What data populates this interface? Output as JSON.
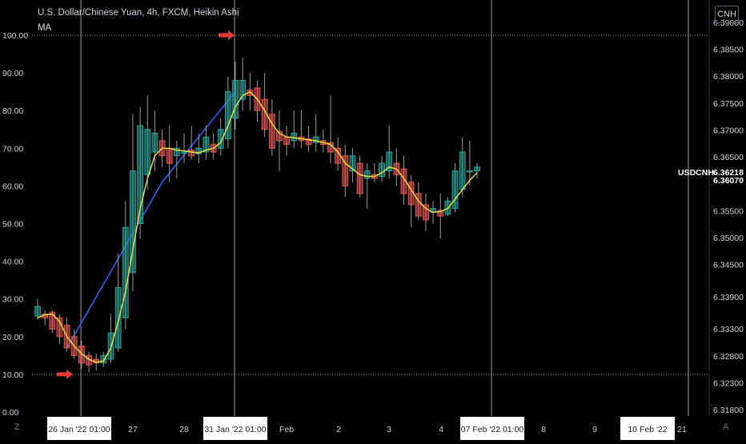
{
  "header": {
    "title": "U.S. Dollar/Chinese Yuan, 4h, FXCM, Heikin Ashi",
    "indicator": "MA",
    "currency_badge": "CNH",
    "bottom_left": "Z",
    "bottom_right": "A"
  },
  "colors": {
    "background": "#000000",
    "up_candle": "#26a69a",
    "down_candle": "#ef5350",
    "ma_line": "#f0e442",
    "trend_line": "#2962ff",
    "arrow": "#e53935",
    "label_bg": "#ffffff",
    "text": "#d1d4dc",
    "guide": "#cfcfcf"
  },
  "chart_data": {
    "type": "candlestick",
    "symbol_label": "USDCNH",
    "last_price_label": "6.36218",
    "ma_value_label": "6.36070",
    "left_axis": {
      "ticks": [
        "0.00",
        "10.00",
        "20.00",
        "30.00",
        "40.00",
        "50.00",
        "60.00",
        "70.00",
        "80.00",
        "90.00",
        "100.00"
      ],
      "range": [
        0,
        100
      ]
    },
    "right_axis": {
      "ticks": [
        "6.31800",
        "6.32300",
        "6.32800",
        "6.33300",
        "6.33900",
        "6.34500",
        "6.35000",
        "6.35500",
        "6.36500",
        "6.37000",
        "6.37500",
        "6.38000",
        "6.38500",
        "6.39000"
      ],
      "range": [
        6.318,
        6.39
      ]
    },
    "x_labels": [
      "26 Jan '22  01:00",
      "27",
      "28",
      "31 Jan '22  01:00",
      "Feb",
      "2",
      "3",
      "4",
      "07 Feb '22  01:00",
      "8",
      "9",
      "10 Feb '22",
      "21"
    ],
    "highlighted_x_labels": [
      0,
      3,
      8,
      11
    ],
    "horizontal_levels": [
      100,
      10
    ],
    "candles": [
      {
        "o": 25.5,
        "h": 30,
        "l": 24.5,
        "c": 28
      },
      {
        "o": 26,
        "h": 27,
        "l": 23,
        "c": 25
      },
      {
        "o": 26.5,
        "h": 27,
        "l": 21,
        "c": 22
      },
      {
        "o": 25,
        "h": 26,
        "l": 18,
        "c": 20
      },
      {
        "o": 23,
        "h": 25,
        "l": 16,
        "c": 17
      },
      {
        "o": 20,
        "h": 22,
        "l": 14,
        "c": 15
      },
      {
        "o": 17.5,
        "h": 19,
        "l": 11.5,
        "c": 13
      },
      {
        "o": 15,
        "h": 16,
        "l": 10.5,
        "c": 12.5
      },
      {
        "o": 14,
        "h": 15.5,
        "l": 11,
        "c": 13
      },
      {
        "o": 13,
        "h": 16,
        "l": 12,
        "c": 15
      },
      {
        "o": 14,
        "h": 26,
        "l": 13,
        "c": 21
      },
      {
        "o": 17,
        "h": 42,
        "l": 16,
        "c": 33
      },
      {
        "o": 25,
        "h": 56,
        "l": 22,
        "c": 49
      },
      {
        "o": 37,
        "h": 79,
        "l": 32,
        "c": 64
      },
      {
        "o": 50,
        "h": 81,
        "l": 46,
        "c": 76
      },
      {
        "o": 63,
        "h": 84,
        "l": 59,
        "c": 75
      },
      {
        "o": 69,
        "h": 80,
        "l": 64,
        "c": 74
      },
      {
        "o": 72,
        "h": 75,
        "l": 65,
        "c": 68
      },
      {
        "o": 70,
        "h": 76,
        "l": 61,
        "c": 66
      },
      {
        "o": 68,
        "h": 72,
        "l": 62,
        "c": 70
      },
      {
        "o": 69,
        "h": 74,
        "l": 66,
        "c": 69
      },
      {
        "o": 69.5,
        "h": 76,
        "l": 67,
        "c": 68
      },
      {
        "o": 68.5,
        "h": 74,
        "l": 66,
        "c": 70
      },
      {
        "o": 69,
        "h": 76,
        "l": 67,
        "c": 73
      },
      {
        "o": 71,
        "h": 74,
        "l": 67,
        "c": 69
      },
      {
        "o": 70,
        "h": 78,
        "l": 68,
        "c": 75
      },
      {
        "o": 72.5,
        "h": 89,
        "l": 70,
        "c": 85
      },
      {
        "o": 78,
        "h": 93,
        "l": 75,
        "c": 88
      },
      {
        "o": 83,
        "h": 94,
        "l": 80,
        "c": 88
      },
      {
        "o": 85.5,
        "h": 90,
        "l": 80,
        "c": 84
      },
      {
        "o": 86,
        "h": 88,
        "l": 77,
        "c": 80
      },
      {
        "o": 83,
        "h": 90,
        "l": 73,
        "c": 75
      },
      {
        "o": 79,
        "h": 83,
        "l": 68,
        "c": 70
      },
      {
        "o": 74.5,
        "h": 80,
        "l": 64,
        "c": 72
      },
      {
        "o": 73,
        "h": 76,
        "l": 68,
        "c": 71
      },
      {
        "o": 72,
        "h": 80,
        "l": 70,
        "c": 74
      },
      {
        "o": 73,
        "h": 80,
        "l": 70,
        "c": 72
      },
      {
        "o": 72.5,
        "h": 76,
        "l": 69,
        "c": 71
      },
      {
        "o": 71.5,
        "h": 79,
        "l": 69,
        "c": 73
      },
      {
        "o": 72,
        "h": 75,
        "l": 69,
        "c": 71
      },
      {
        "o": 71.5,
        "h": 84,
        "l": 66,
        "c": 69
      },
      {
        "o": 70,
        "h": 73,
        "l": 64,
        "c": 66
      },
      {
        "o": 68,
        "h": 71,
        "l": 57,
        "c": 60
      },
      {
        "o": 64,
        "h": 70,
        "l": 61,
        "c": 68
      },
      {
        "o": 66,
        "h": 68,
        "l": 57,
        "c": 58
      },
      {
        "o": 62,
        "h": 66,
        "l": 54,
        "c": 64
      },
      {
        "o": 63,
        "h": 66,
        "l": 61,
        "c": 62
      },
      {
        "o": 62.5,
        "h": 68,
        "l": 61,
        "c": 66
      },
      {
        "o": 64,
        "h": 76,
        "l": 62,
        "c": 69
      },
      {
        "o": 66,
        "h": 70,
        "l": 60,
        "c": 63
      },
      {
        "o": 64.5,
        "h": 68,
        "l": 55,
        "c": 58
      },
      {
        "o": 61,
        "h": 63,
        "l": 49,
        "c": 55
      },
      {
        "o": 58,
        "h": 61,
        "l": 51,
        "c": 52
      },
      {
        "o": 55,
        "h": 58,
        "l": 48,
        "c": 51
      },
      {
        "o": 53,
        "h": 56,
        "l": 50,
        "c": 54
      },
      {
        "o": 53.5,
        "h": 58,
        "l": 46,
        "c": 52
      },
      {
        "o": 52.5,
        "h": 57,
        "l": 52,
        "c": 56
      },
      {
        "o": 54,
        "h": 66,
        "l": 53,
        "c": 64
      },
      {
        "o": 59,
        "h": 73,
        "l": 57,
        "c": 69
      },
      {
        "o": 64,
        "h": 72,
        "l": 60,
        "c": 64
      },
      {
        "o": 64,
        "h": 66,
        "l": 62,
        "c": 65
      }
    ],
    "ma_series": [
      25,
      25.8,
      26,
      24,
      20,
      17.5,
      15.5,
      14,
      13.2,
      13.5,
      17,
      24,
      32,
      43,
      54,
      62,
      68,
      70,
      70,
      69.5,
      69.3,
      69,
      68.8,
      69.5,
      70,
      71.5,
      76,
      81,
      84,
      85,
      83,
      80,
      76.5,
      74,
      73,
      72.8,
      72.5,
      72.2,
      72,
      71.5,
      71,
      69,
      66,
      64.5,
      63,
      62.5,
      62.5,
      63.5,
      65,
      64.5,
      62,
      59,
      56,
      54,
      53,
      53.2,
      54,
      56.5,
      59,
      61.5,
      63.5
    ],
    "trend_lines": [
      {
        "from": {
          "bar": 4,
          "value": 17
        },
        "to": {
          "bar": 17,
          "value": 61
        }
      },
      {
        "from": {
          "bar": 17,
          "value": 61
        },
        "to": {
          "bar": 27,
          "value": 85
        }
      }
    ]
  }
}
